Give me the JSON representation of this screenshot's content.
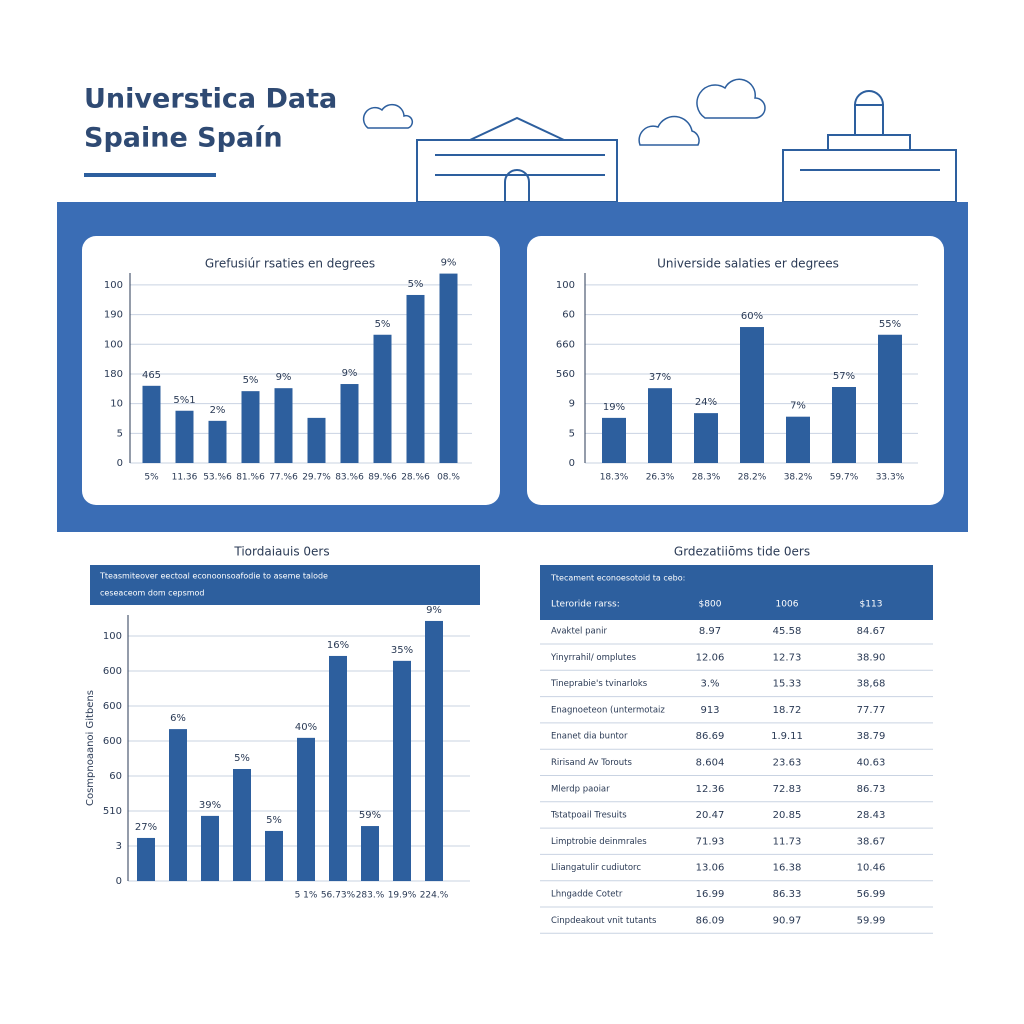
{
  "header": {
    "title_line1": "Universtica Data",
    "title_line2": "Spaine Spaín"
  },
  "chart_data": [
    {
      "type": "bar",
      "title": "Grefusiúr rsaties en degrees",
      "color": "#2d5f9e",
      "categories": [
        "5%",
        "11.36",
        "53.%6",
        "81.%6",
        "77.%6",
        "29.7%",
        "83.%6",
        "89.%6",
        "28.%6",
        "08.%"
      ],
      "values": [
        13,
        8.8,
        7.1,
        12.1,
        12.6,
        7.6,
        13.3,
        21.6,
        28.3,
        31.9
      ],
      "annotations": [
        "465",
        "5%1",
        "2%",
        "5%",
        "9%",
        "",
        "9%",
        "5%",
        "5%",
        "9%"
      ],
      "ylim": [
        0,
        32
      ],
      "yticks": [
        0,
        5,
        {
          "value": 10,
          "label": "10"
        },
        {
          "value": 15,
          "label": "180"
        },
        {
          "value": 20,
          "label": "100"
        },
        {
          "value": 25,
          "label": "190"
        },
        {
          "value": 30,
          "label": "100"
        }
      ]
    },
    {
      "type": "bar",
      "title": "Universide salaties er degrees",
      "color": "#2d5f9e",
      "categories": [
        "18.3%",
        "26.3%",
        "28.3%",
        "28.2%",
        "38.2%",
        "59.7%",
        "33.3%"
      ],
      "values": [
        7.6,
        12.6,
        8.4,
        22.9,
        7.8,
        12.8,
        21.6
      ],
      "annotations": [
        "19%",
        "37%",
        "24%",
        "60%",
        "7%",
        "57%",
        "55%"
      ],
      "ylim": [
        0,
        32
      ],
      "yticks": [
        0,
        5,
        {
          "value": 10,
          "label": "9"
        },
        {
          "value": 15,
          "label": "560"
        },
        {
          "value": 20,
          "label": "660"
        },
        {
          "value": 25,
          "label": "60"
        },
        {
          "value": 30,
          "label": "100"
        }
      ]
    },
    {
      "type": "bar",
      "title": "Tiordaiauis 0ers",
      "subtitle": "Tteasmiteover eectoal econoonsoafodie to aseme talode",
      "subtitle2": "ceseaceom dom cepsmod",
      "y_label": "Cosmpnoaanoi Gitbens",
      "color": "#2d5f9e",
      "categories": [
        null,
        null,
        null,
        null,
        null,
        "5 1%",
        "56.73%",
        "283.%",
        "19.9%",
        "224.%"
      ],
      "values": [
        1.23,
        4.34,
        1.86,
        3.2,
        1.43,
        4.09,
        6.43,
        1.57,
        6.29,
        7.43
      ],
      "annotations": [
        "27%",
        "6%",
        "39%",
        "5%",
        "5%",
        "40%",
        "16%",
        "59%",
        "35%",
        "9%"
      ],
      "ylim": [
        0,
        7.6
      ],
      "yticks": [
        0,
        {
          "value": 1,
          "label": "3"
        },
        {
          "value": 2,
          "label": "510"
        },
        {
          "value": 3,
          "label": "60"
        },
        {
          "value": 4,
          "label": "600"
        },
        {
          "value": 5,
          "label": "600"
        },
        {
          "value": 6,
          "label": "600"
        },
        {
          "value": 7,
          "label": "100"
        }
      ]
    }
  ],
  "table": {
    "title": "Grdezatiiōms tide 0ers",
    "caption": "Ttecament econoesotoid ta cebo:",
    "header": [
      "Lteroride rarss:",
      "$800",
      "1006",
      "$113"
    ],
    "rows": [
      [
        "Avaktel panir",
        "8.97",
        "45.58",
        "84.67"
      ],
      [
        "Yinyrrahil/ omplutes",
        "12.06",
        "12.73",
        "38.90"
      ],
      [
        "Tineprabie's tvinarloks",
        "3.%",
        "15.33",
        "38,68"
      ],
      [
        "Enagnoeteon (untermotaiz",
        "913",
        "18.72",
        "77.77"
      ],
      [
        "Enanet dia buntor",
        "86.69",
        "1.9.11",
        "38.79"
      ],
      [
        "Ririsand Av Torouts",
        "8.604",
        "23.63",
        "40.63"
      ],
      [
        "Mlerdp paoiar",
        "12.36",
        "72.83",
        "86.73"
      ],
      [
        "Tstatpoail Tresuits",
        "20.47",
        "20.85",
        "28.43"
      ],
      [
        "Limptrobie deinmrales",
        "71.93",
        "11.73",
        "38.67"
      ],
      [
        "Lliangatulir cudiutorc",
        "13.06",
        "16.38",
        "10.46"
      ],
      [
        "Lhngadde Cotetr",
        "16.99",
        "86.33",
        "56.99"
      ],
      [
        "Cinpdeakout vnit tutants",
        "86.09",
        "90.97",
        "59.99"
      ]
    ]
  }
}
